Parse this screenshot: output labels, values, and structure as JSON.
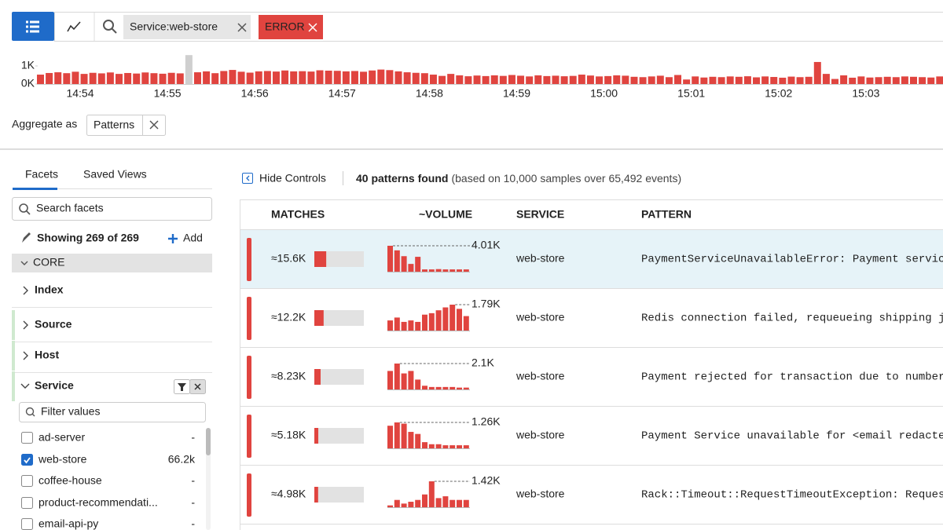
{
  "toolbar": {
    "filters": [
      "Service:web-store",
      "ERROR"
    ]
  },
  "timeline": {
    "yticks": [
      {
        "value": 0,
        "label": "0K"
      },
      {
        "value": 1000,
        "label": "1K"
      }
    ],
    "xticks": [
      "14:54",
      "14:55",
      "14:56",
      "14:57",
      "14:58",
      "14:59",
      "15:00",
      "15:01",
      "15:02",
      "15:03"
    ],
    "selected_bar": 17,
    "values": [
      520,
      610,
      650,
      600,
      680,
      560,
      620,
      590,
      640,
      560,
      610,
      580,
      640,
      600,
      570,
      620,
      590,
      1600,
      650,
      700,
      600,
      720,
      780,
      680,
      630,
      700,
      720,
      690,
      750,
      700,
      710,
      690,
      760,
      740,
      730,
      700,
      720,
      680,
      750,
      800,
      770,
      700,
      650,
      620,
      600,
      520,
      450,
      560,
      480,
      430,
      470,
      440,
      480,
      450,
      500,
      460,
      420,
      480,
      440,
      460,
      430,
      450,
      520,
      470,
      420,
      440,
      480,
      460,
      400,
      380,
      420,
      460,
      380,
      500,
      250,
      420,
      360,
      400,
      380,
      420,
      400,
      430,
      370,
      420,
      390,
      350,
      410,
      380,
      400,
      1220,
      560,
      280,
      480,
      350,
      420,
      360,
      380,
      400,
      380,
      420,
      400,
      380,
      360,
      420
    ]
  },
  "aggregate": {
    "label": "Aggregate as",
    "value": "Patterns"
  },
  "sidebar": {
    "tabs": [
      "Facets",
      "Saved Views"
    ],
    "search_placeholder": "Search facets",
    "showing": "Showing 269 of 269",
    "add": "Add",
    "section": "CORE",
    "facets": [
      "Index",
      "Source",
      "Host",
      "Service"
    ],
    "filter_placeholder": "Filter values",
    "values": [
      {
        "name": "ad-server",
        "count": "-",
        "checked": false
      },
      {
        "name": "web-store",
        "count": "66.2k",
        "checked": true
      },
      {
        "name": "coffee-house",
        "count": "-",
        "checked": false
      },
      {
        "name": "product-recommendati...",
        "count": "-",
        "checked": false
      },
      {
        "name": "email-api-py",
        "count": "-",
        "checked": false
      }
    ]
  },
  "controls": {
    "hide": "Hide Controls",
    "summary": "40 patterns found",
    "detail": "(based on 10,000 samples over 65,492 events)"
  },
  "table": {
    "columns": [
      "MATCHES",
      "~VOLUME",
      "SERVICE",
      "PATTERN"
    ],
    "rows": [
      {
        "matches": 15600,
        "matches_label": "≈15.6K",
        "volume": [
          4010,
          3300,
          2400,
          1200,
          2300,
          350,
          350,
          400,
          350,
          350,
          350,
          350
        ],
        "peak": {
          "value": 4010,
          "label": "4.01K"
        },
        "service": "web-store",
        "pattern": "PaymentServiceUnavailableError: Payment service"
      },
      {
        "matches": 12200,
        "matches_label": "≈12.2K",
        "volume": [
          700,
          900,
          600,
          700,
          600,
          1100,
          1200,
          1400,
          1600,
          1790,
          1500,
          1000
        ],
        "peak": {
          "value": 1790,
          "label": "1.79K"
        },
        "service": "web-store",
        "pattern": "Redis connection failed, requeueing shipping job"
      },
      {
        "matches": 8230,
        "matches_label": "≈8.23K",
        "volume": [
          1500,
          2100,
          1300,
          1500,
          800,
          300,
          200,
          200,
          200,
          200,
          150,
          150
        ],
        "peak": {
          "value": 2100,
          "label": "2.1K"
        },
        "service": "web-store",
        "pattern": "Payment rejected for transaction due to number of"
      },
      {
        "matches": 5180,
        "matches_label": "≈5.18K",
        "volume": [
          1100,
          1260,
          1200,
          800,
          700,
          300,
          200,
          200,
          150,
          150,
          150,
          150
        ],
        "peak": {
          "value": 1260,
          "label": "1.26K"
        },
        "service": "web-store",
        "pattern": "Payment Service unavailable for <email redacted>"
      },
      {
        "matches": 4980,
        "matches_label": "≈4.98K",
        "volume": [
          100,
          400,
          200,
          300,
          400,
          700,
          1420,
          500,
          600,
          400,
          400,
          400
        ],
        "peak": {
          "value": 1420,
          "label": "1.42K"
        },
        "service": "web-store",
        "pattern": "Rack::Timeout::RequestTimeoutException: Request"
      }
    ]
  }
}
